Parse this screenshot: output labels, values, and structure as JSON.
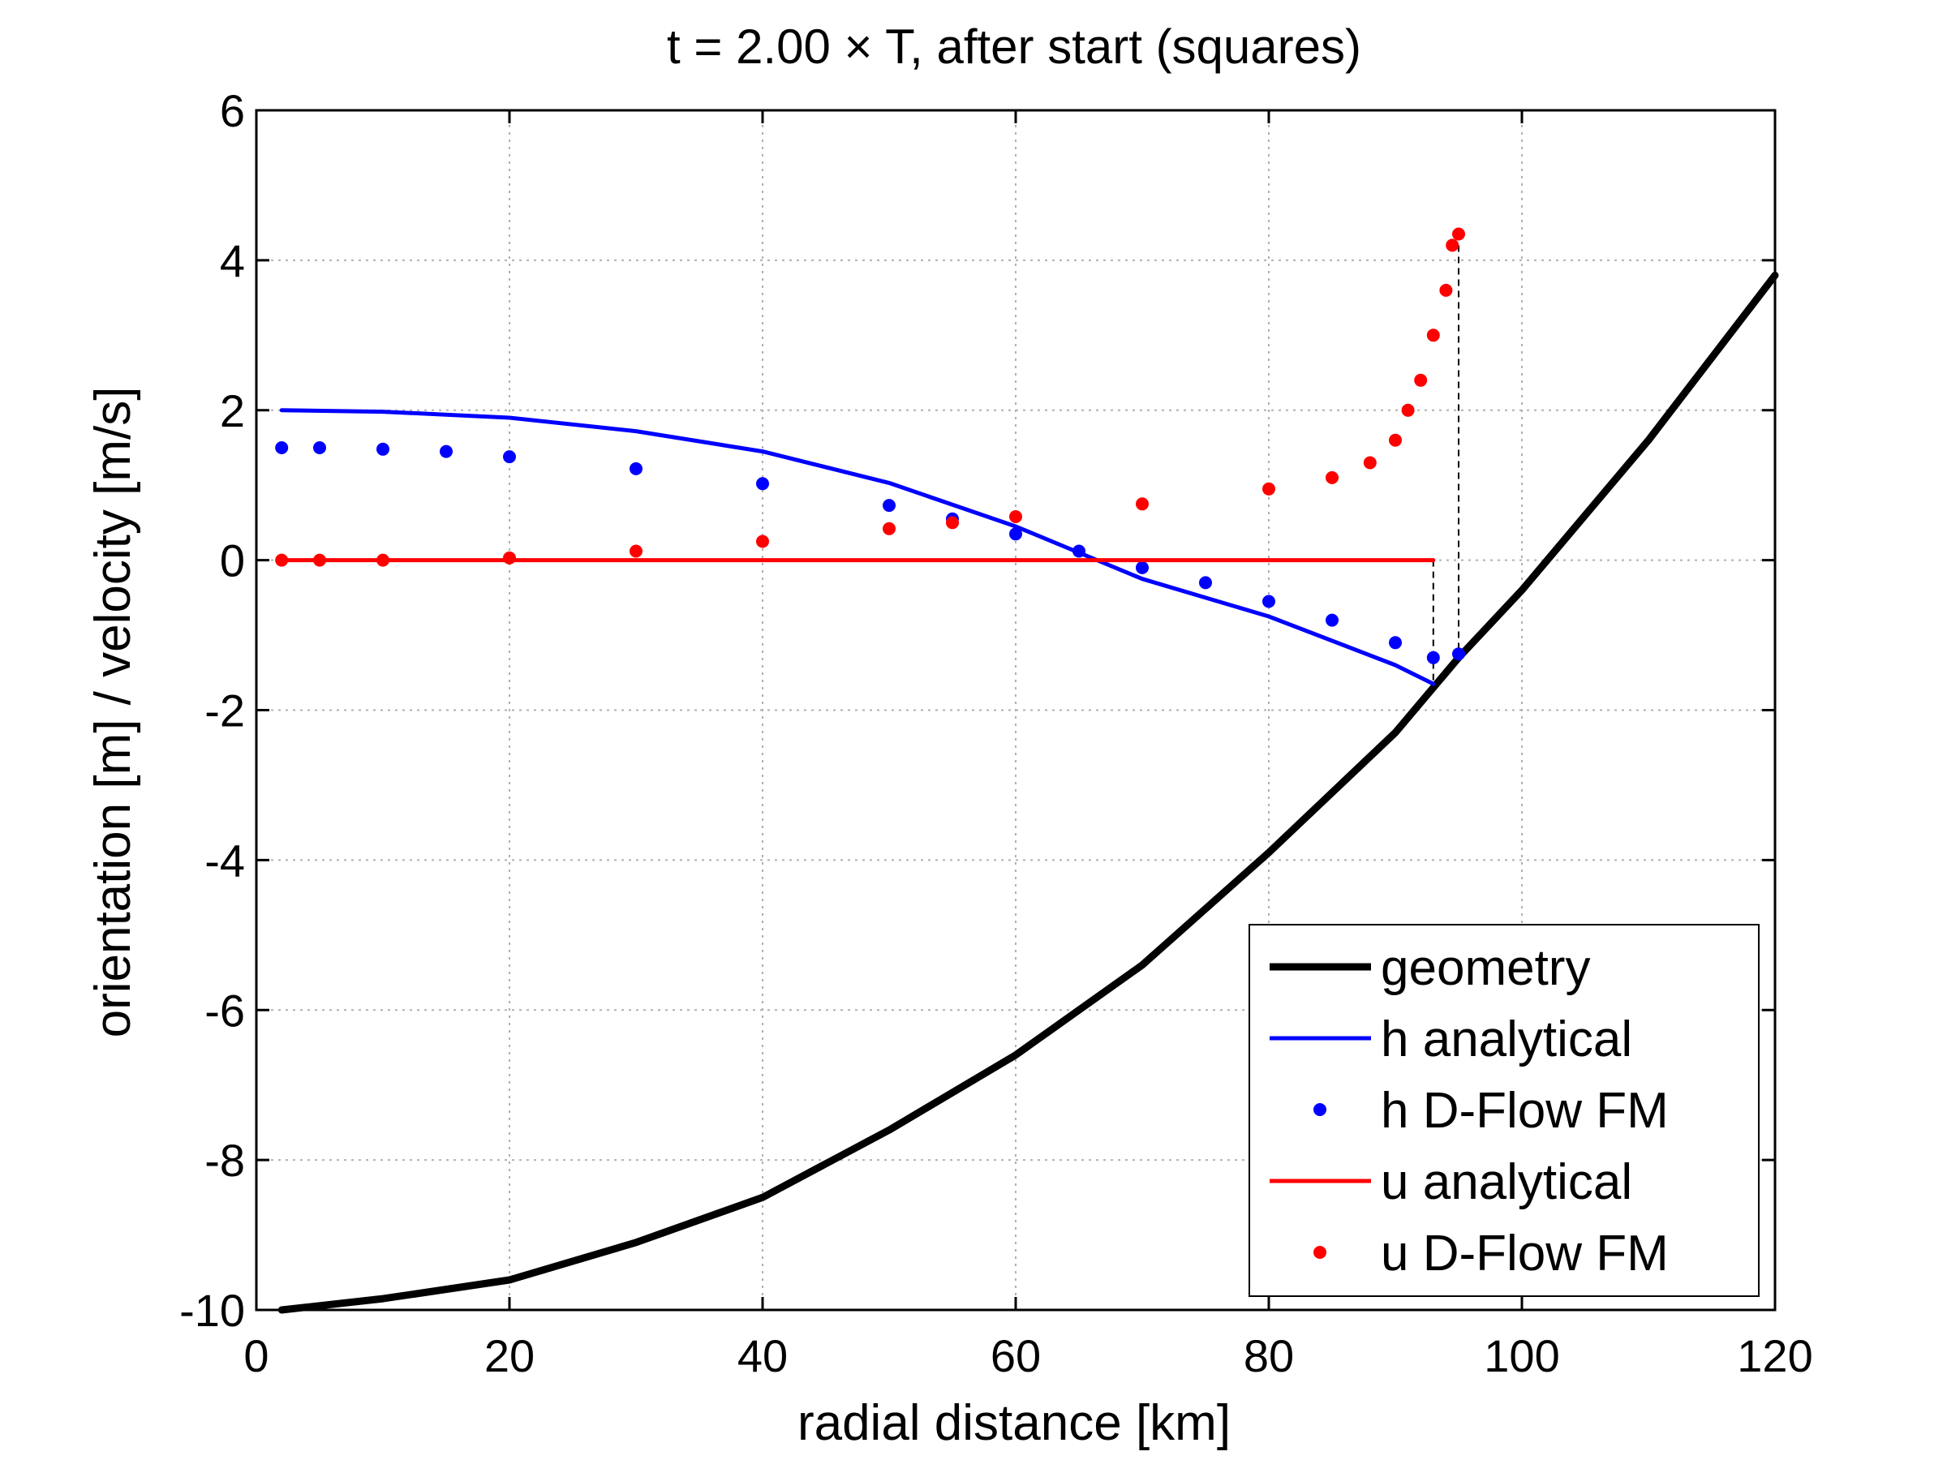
{
  "chart_data": {
    "type": "line",
    "title": "t = 2.00 × T, after start (squares)",
    "xlabel": "radial distance [km]",
    "ylabel": "orientation [m] / velocity [m/s]",
    "xlim": [
      0,
      120
    ],
    "ylim": [
      -10,
      6
    ],
    "xticks": [
      0,
      20,
      40,
      60,
      80,
      100,
      120
    ],
    "yticks": [
      -10,
      -8,
      -6,
      -4,
      -2,
      0,
      2,
      4,
      6
    ],
    "grid": true,
    "legend_position": "bottom-right",
    "legend": [
      "geometry",
      "h  analytical",
      "h  D-Flow FM",
      "u  analytical",
      "u  D-Flow FM"
    ],
    "colors": {
      "geometry": "#000000",
      "h": "#0000ff",
      "u": "#ff0000"
    },
    "series": [
      {
        "name": "geometry",
        "style": "line",
        "x": [
          2,
          10,
          20,
          30,
          40,
          50,
          60,
          70,
          80,
          90,
          95,
          100,
          110,
          120
        ],
        "y": [
          -10.0,
          -9.85,
          -9.6,
          -9.1,
          -8.5,
          -7.6,
          -6.6,
          -5.4,
          -3.9,
          -2.3,
          -1.3,
          -0.4,
          1.6,
          3.8
        ]
      },
      {
        "name": "h  analytical",
        "style": "line",
        "x": [
          2,
          10,
          20,
          30,
          40,
          50,
          60,
          70,
          80,
          90,
          93
        ],
        "y": [
          2.0,
          1.98,
          1.9,
          1.72,
          1.45,
          1.03,
          0.45,
          -0.25,
          -0.75,
          -1.4,
          -1.65
        ]
      },
      {
        "name": "h  D-Flow FM",
        "style": "markers",
        "x": [
          2,
          5,
          10,
          15,
          20,
          30,
          40,
          50,
          55,
          60,
          65,
          70,
          75,
          80,
          85,
          90,
          93,
          95
        ],
        "y": [
          1.5,
          1.5,
          1.48,
          1.45,
          1.38,
          1.22,
          1.02,
          0.73,
          0.55,
          0.35,
          0.12,
          -0.1,
          -0.3,
          -0.55,
          -0.8,
          -1.1,
          -1.3,
          -1.25
        ]
      },
      {
        "name": "u  analytical",
        "style": "line",
        "x": [
          2,
          93
        ],
        "y": [
          0,
          0
        ]
      },
      {
        "name": "u  D-Flow FM",
        "style": "markers",
        "x": [
          2,
          5,
          10,
          20,
          30,
          40,
          50,
          55,
          60,
          70,
          80,
          85,
          88,
          90,
          91,
          92,
          93,
          94,
          94.5,
          95
        ],
        "y": [
          0.0,
          0.0,
          0.0,
          0.03,
          0.12,
          0.25,
          0.42,
          0.5,
          0.58,
          0.75,
          0.95,
          1.1,
          1.3,
          1.6,
          2.0,
          2.4,
          3.0,
          3.6,
          4.2,
          4.35
        ]
      }
    ],
    "annotations": [
      {
        "type": "dashed-vertical",
        "x": 93,
        "y_from": 0,
        "y_to": -1.65
      },
      {
        "type": "dashed-vertical",
        "x": 95,
        "y_from": 4.35,
        "y_to": -1.3
      }
    ]
  }
}
